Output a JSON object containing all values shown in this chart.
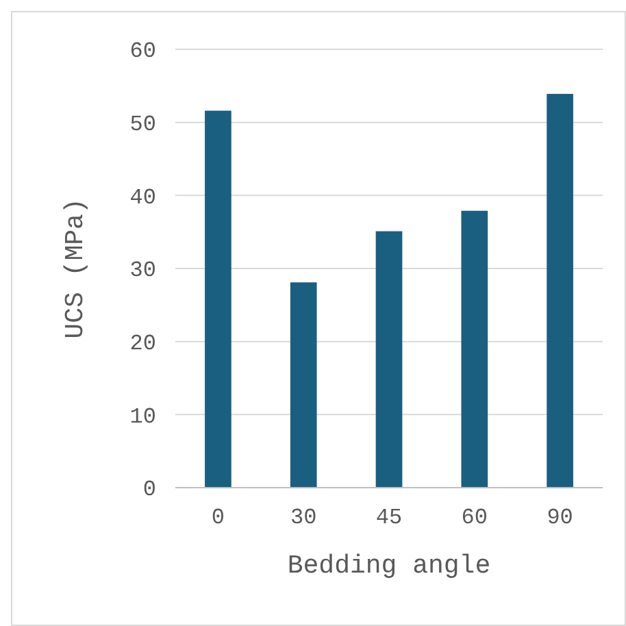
{
  "chart_data": {
    "type": "bar",
    "xlabel": "Bedding angle",
    "ylabel": "UCS (MPa)",
    "categories": [
      "0",
      "30",
      "45",
      "60",
      "90"
    ],
    "values": [
      51.6,
      28.1,
      35.1,
      37.9,
      53.9
    ],
    "color": "#1a5f80",
    "ylim": [
      0,
      60
    ],
    "yticks": [
      0,
      10,
      20,
      30,
      40,
      50,
      60
    ],
    "grid": "y"
  }
}
